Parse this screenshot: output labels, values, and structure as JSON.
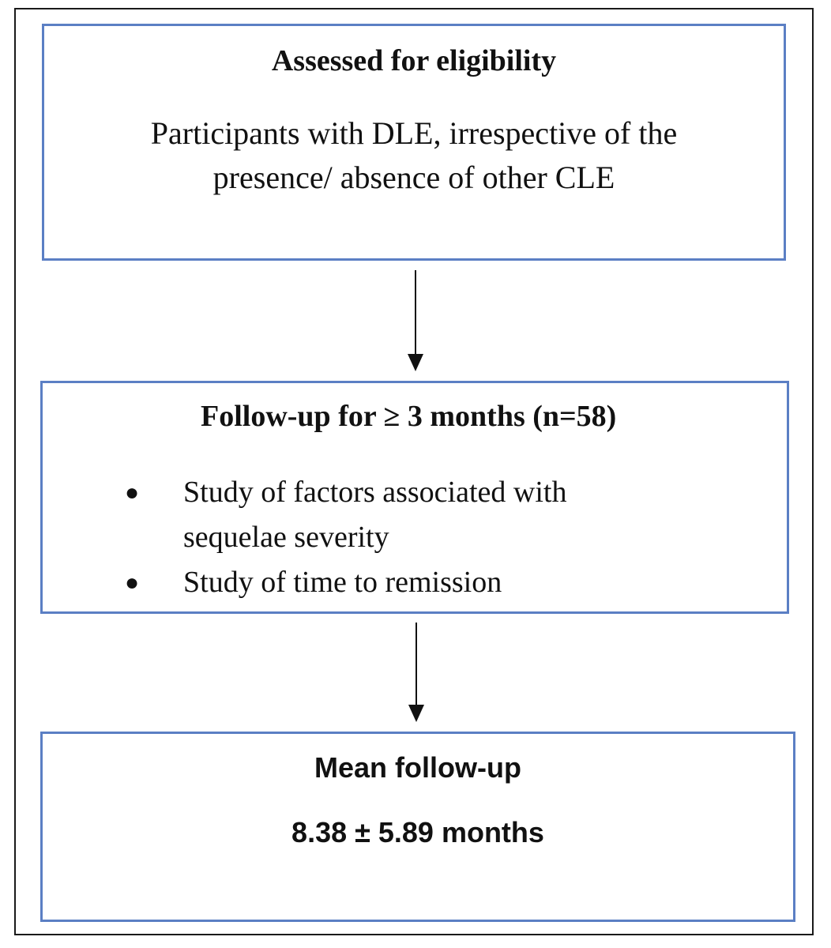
{
  "box1": {
    "title": "Assessed for eligibility",
    "body_line1": "Participants with DLE, irrespective of the",
    "body_line2": "presence/ absence of other CLE"
  },
  "box2": {
    "title": "Follow-up for ≥ 3 months (n=58)",
    "bullets": [
      {
        "line1": "Study of factors associated with",
        "line2": "sequelae severity"
      },
      {
        "line1": "Study of time to remission"
      }
    ]
  },
  "box3": {
    "title": "Mean follow-up",
    "value": "8.38 ± 5.89 months"
  },
  "colors": {
    "box_border": "#5b7fc4",
    "outer_frame": "#1a1a1a",
    "arrow": "#111111",
    "text": "#111111"
  }
}
